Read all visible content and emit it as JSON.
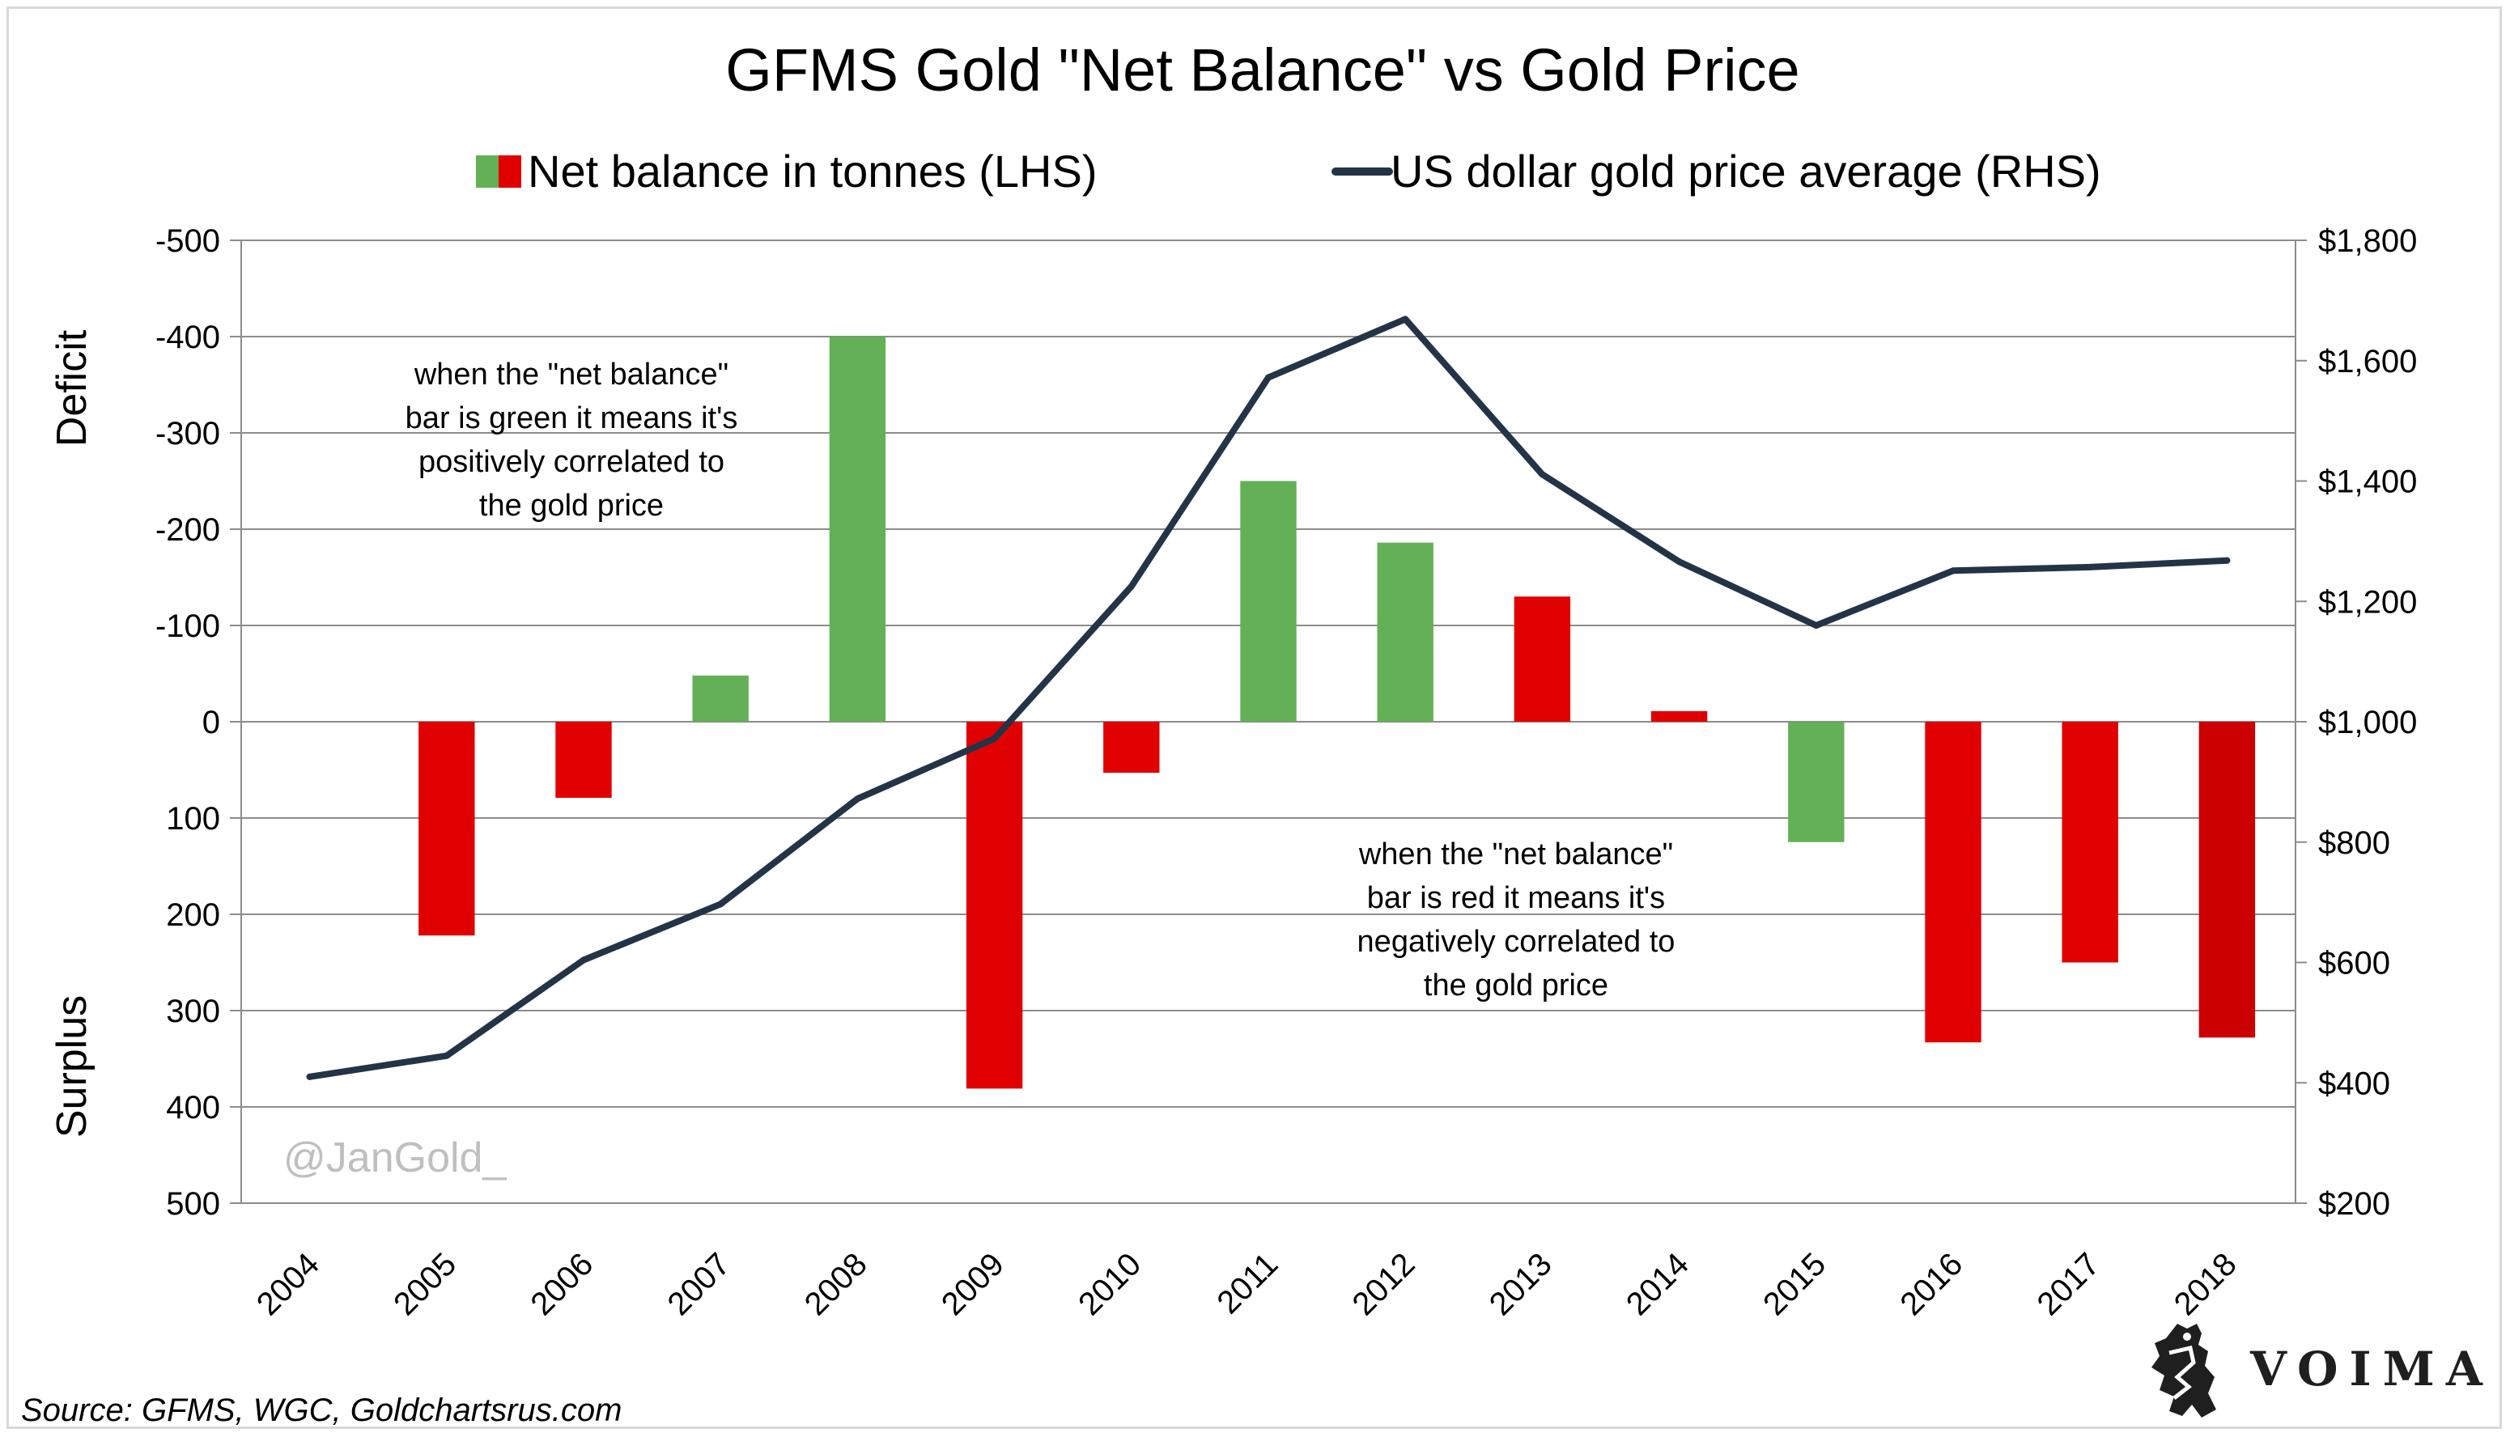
{
  "chart_data": {
    "type": "bar",
    "title": "GFMS Gold \"Net Balance\" vs Gold Price",
    "categories": [
      "2004",
      "2005",
      "2006",
      "2007",
      "2008",
      "2009",
      "2010",
      "2011",
      "2012",
      "2013",
      "2014",
      "2015",
      "2016",
      "2017",
      "2018"
    ],
    "series": [
      {
        "name": "Net balance in tonnes (LHS)",
        "kind": "bar",
        "axis": "left",
        "values": [
          0,
          222,
          79,
          -48,
          -400,
          381,
          53,
          -250,
          -186,
          -130,
          -11,
          125,
          333,
          250,
          328
        ],
        "colors": [
          "#e00000",
          "#e00000",
          "#e00000",
          "#63b057",
          "#63b057",
          "#e00000",
          "#e00000",
          "#63b057",
          "#63b057",
          "#e00000",
          "#e00000",
          "#63b057",
          "#e00000",
          "#e00000",
          "#cc0000"
        ]
      },
      {
        "name": "US dollar gold price average (RHS)",
        "kind": "line",
        "axis": "right",
        "color": "#243447",
        "values": [
          410,
          445,
          604,
          697,
          872,
          972,
          1225,
          1572,
          1669,
          1411,
          1266,
          1160,
          1251,
          1257,
          1268
        ]
      }
    ],
    "left_axis": {
      "ylim": [
        -500,
        500
      ],
      "inverted": true,
      "ticks": [
        -500,
        -400,
        -300,
        -200,
        -100,
        0,
        100,
        200,
        300,
        400,
        500
      ],
      "tick_labels": [
        "-500",
        "-400",
        "-300",
        "-200",
        "-100",
        "0",
        "100",
        "200",
        "300",
        "400",
        "500"
      ],
      "top_label": "Deficit",
      "bottom_label": "Surplus"
    },
    "right_axis": {
      "ylim": [
        200,
        1800
      ],
      "ticks": [
        200,
        400,
        600,
        800,
        1000,
        1200,
        1400,
        1600,
        1800
      ],
      "tick_labels": [
        "$200",
        "$400",
        "$600",
        "$800",
        "$1,000",
        "$1,200",
        "$1,400",
        "$1,600",
        "$1,800"
      ]
    },
    "legend": {
      "position": "top",
      "bar_colors": [
        "#63b057",
        "#e00000"
      ]
    },
    "grid": true,
    "annotations": [
      {
        "lines": [
          "when the \"net balance\"",
          "bar is green it means it's",
          "positively correlated to",
          "the gold price"
        ]
      },
      {
        "lines": [
          "when the \"net balance\"",
          "bar is red it means it's",
          "negatively correlated to",
          "the gold price"
        ]
      }
    ]
  },
  "watermark": "@JanGold_",
  "source": "Source: GFMS, WGC, Goldchartsrus.com",
  "brand": "VOIMA",
  "icons": {
    "brand_logo": "griffin-crest-icon"
  }
}
